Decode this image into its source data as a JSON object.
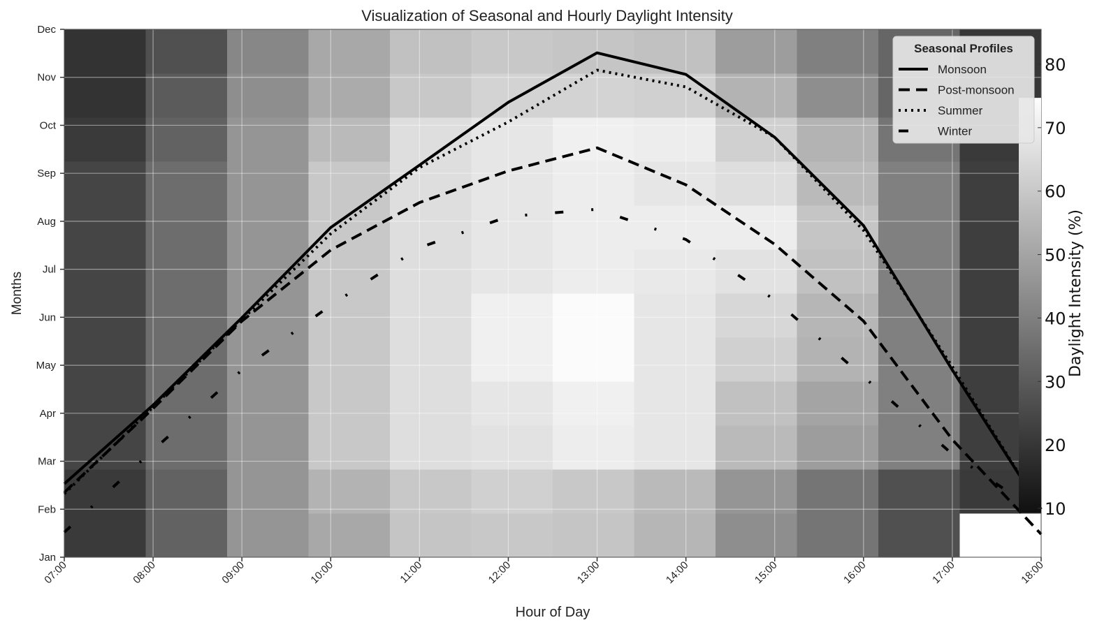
{
  "chart_data": {
    "type": "heatmap",
    "title": "Visualization of Seasonal and Hourly Daylight Intensity",
    "xlabel": "Hour of Day",
    "ylabel": "Months",
    "colorbar_label": "Daylight Intensity (%)",
    "colorbar_ticks": [
      10,
      20,
      30,
      40,
      50,
      60,
      70,
      80
    ],
    "colorbar_range": [
      9.3,
      74.7
    ],
    "color_range": [
      5,
      75
    ],
    "colormap": "gray",
    "x_ticks": [
      "07:00",
      "08:00",
      "09:00",
      "10:00",
      "11:00",
      "12:00",
      "13:00",
      "14:00",
      "15:00",
      "16:00",
      "17:00",
      "18:00"
    ],
    "y_ticks": [
      "Jan",
      "Feb",
      "Mar",
      "Apr",
      "May",
      "Jun",
      "Jul",
      "Aug",
      "Sep",
      "Oct",
      "Nov",
      "Dec"
    ],
    "hours": [
      7,
      8,
      9,
      10,
      11,
      12,
      13,
      14,
      15,
      16,
      17,
      18
    ],
    "heatmap_values": [
      [
        21,
        32,
        46,
        51,
        59,
        60,
        59,
        55,
        44,
        37,
        27,
        null
      ],
      [
        21,
        32,
        46,
        54,
        60,
        62,
        60,
        56,
        46,
        37,
        27,
        21
      ],
      [
        24,
        35,
        46,
        60,
        66,
        67,
        70,
        68,
        56,
        48,
        40,
        22
      ],
      [
        24,
        35,
        46,
        60,
        66,
        68,
        71,
        68,
        58,
        50,
        40,
        22
      ],
      [
        24,
        35,
        46,
        60,
        66,
        71,
        74,
        68,
        62,
        54,
        40,
        22
      ],
      [
        24,
        35,
        46,
        60,
        66,
        71,
        74,
        68,
        64,
        55,
        40,
        22
      ],
      [
        24,
        35,
        46,
        60,
        66,
        68,
        70,
        69,
        67,
        58,
        40,
        22
      ],
      [
        24,
        35,
        46,
        60,
        66,
        68,
        70,
        70,
        70,
        59,
        40,
        22
      ],
      [
        24,
        35,
        46,
        60,
        66,
        68,
        70,
        68,
        66,
        56,
        40,
        22
      ],
      [
        21,
        32,
        46,
        56,
        66,
        68,
        71,
        70,
        62,
        54,
        37,
        21
      ],
      [
        19,
        30,
        44,
        52,
        60,
        63,
        63,
        62,
        54,
        44,
        33,
        20
      ],
      [
        19,
        27,
        42,
        51,
        58,
        60,
        59,
        58,
        48,
        40,
        33,
        20
      ]
    ],
    "legend": {
      "title": "Seasonal Profiles",
      "placement": "top-right"
    },
    "series": [
      {
        "name": "Monsoon",
        "style": "solid",
        "values": [
          1.53,
          3.17,
          4.99,
          6.87,
          8.17,
          9.48,
          10.51,
          10.06,
          8.75,
          6.91,
          3.9,
          1.0
        ]
      },
      {
        "name": "Post-monsoon",
        "style": "dashed",
        "values": [
          1.35,
          3.1,
          4.92,
          6.4,
          7.39,
          8.05,
          8.53,
          7.76,
          6.52,
          4.92,
          2.45,
          0.48
        ]
      },
      {
        "name": "Summer",
        "style": "dotted",
        "values": [
          1.32,
          3.13,
          4.95,
          6.74,
          8.12,
          9.07,
          10.15,
          9.8,
          8.75,
          6.81,
          3.97,
          1.0
        ]
      },
      {
        "name": "Winter",
        "style": "dashdot",
        "values": [
          0.52,
          2.23,
          3.9,
          5.25,
          6.45,
          7.1,
          7.25,
          6.62,
          5.36,
          3.76,
          2.15,
          0.9
        ]
      }
    ],
    "ylim": [
      0,
      11
    ],
    "xlim": [
      7,
      18
    ],
    "grid": true
  }
}
